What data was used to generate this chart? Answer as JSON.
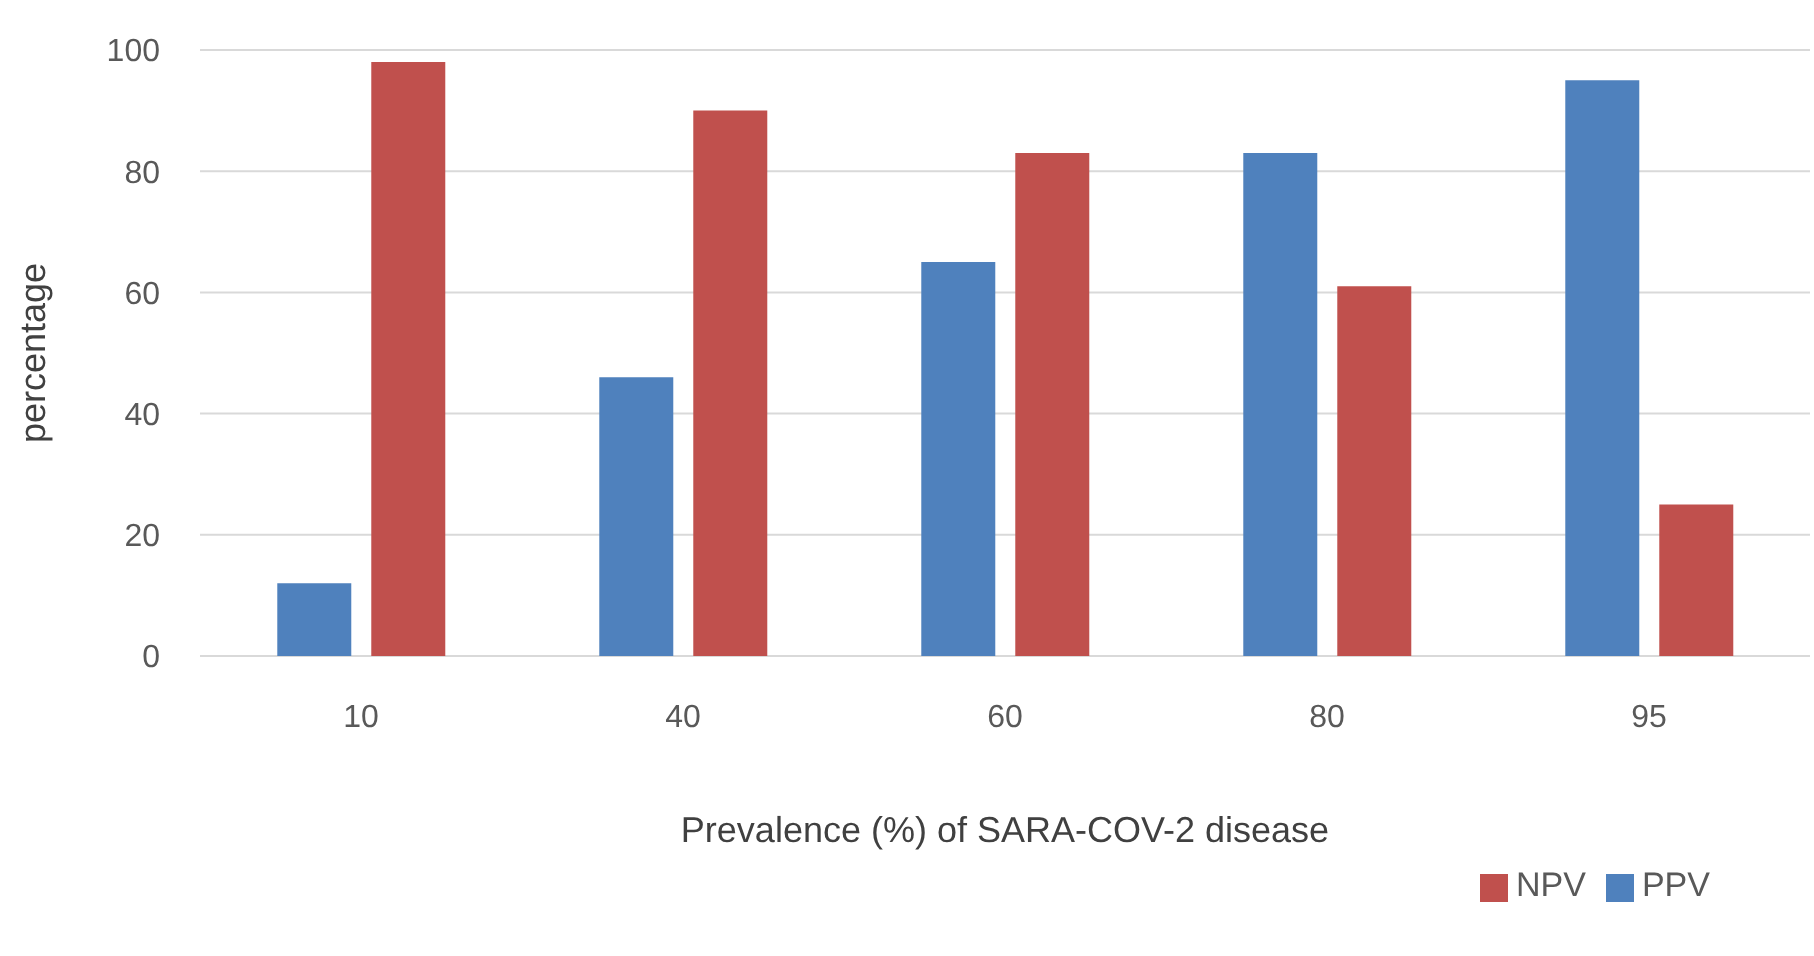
{
  "chart_data": {
    "type": "bar",
    "xlabel": "Prevalence (%) of SARA-COV-2 disease",
    "ylabel": "percentage",
    "categories": [
      "10",
      "40",
      "60",
      "80",
      "95"
    ],
    "series": [
      {
        "name": "PPV",
        "color": "#4f81bd",
        "values": [
          12,
          46,
          65,
          83,
          95
        ]
      },
      {
        "name": "NPV",
        "color": "#c0504d",
        "values": [
          98,
          90,
          83,
          61,
          25
        ]
      }
    ],
    "ylim": [
      0,
      100
    ],
    "yticks": [
      0,
      20,
      40,
      60,
      80,
      100
    ],
    "grid": "y",
    "legend": "bottom right"
  }
}
